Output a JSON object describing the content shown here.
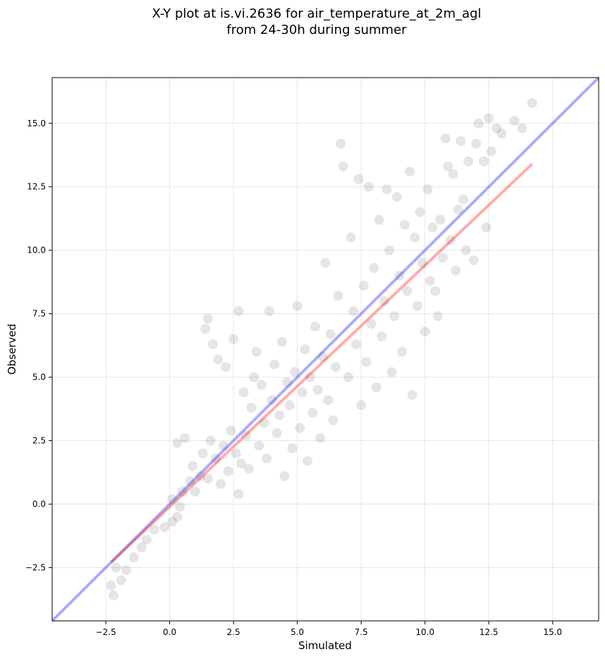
{
  "chart_data": {
    "type": "scatter",
    "title": [
      "X-Y plot at is.vi.2636 for air_temperature_at_2m_agl",
      "from 24-30h during summer"
    ],
    "xlabel": "Simulated",
    "ylabel": "Observed",
    "xlim": [
      -4.6,
      16.8
    ],
    "ylim": [
      -4.6,
      16.8
    ],
    "xticks": [
      -2.5,
      0.0,
      2.5,
      5.0,
      7.5,
      10.0,
      12.5,
      15.0
    ],
    "yticks": [
      -2.5,
      0.0,
      2.5,
      5.0,
      7.5,
      10.0,
      12.5,
      15.0
    ],
    "xtick_labels": [
      "−2.5",
      "0.0",
      "2.5",
      "5.0",
      "7.5",
      "10.0",
      "12.5",
      "15.0"
    ],
    "ytick_labels": [
      "−2.5",
      "0.0",
      "2.5",
      "5.0",
      "7.5",
      "10.0",
      "12.5",
      "15.0"
    ],
    "grid": true,
    "colors": {
      "points": "#000000",
      "identity_line": "#0000ff",
      "fit_line": "#ff0000",
      "grid": "#e6e6e6"
    },
    "series": [
      {
        "kind": "points",
        "points": [
          [
            -2.2,
            -3.6
          ],
          [
            -2.3,
            -3.2
          ],
          [
            -1.9,
            -3.0
          ],
          [
            -1.7,
            -2.6
          ],
          [
            -2.1,
            -2.5
          ],
          [
            -1.4,
            -2.1
          ],
          [
            -1.1,
            -1.7
          ],
          [
            -0.9,
            -1.4
          ],
          [
            -0.6,
            -1.0
          ],
          [
            -0.2,
            -0.9
          ],
          [
            0.1,
            -0.7
          ],
          [
            0.3,
            -0.5
          ],
          [
            0.4,
            -0.1
          ],
          [
            0.1,
            0.2
          ],
          [
            0.5,
            0.5
          ],
          [
            0.8,
            0.9
          ],
          [
            1.0,
            0.5
          ],
          [
            0.3,
            2.4
          ],
          [
            0.6,
            2.6
          ],
          [
            0.9,
            1.5
          ],
          [
            1.2,
            1.1
          ],
          [
            1.3,
            2.0
          ],
          [
            1.5,
            1.0
          ],
          [
            1.6,
            2.5
          ],
          [
            1.8,
            1.8
          ],
          [
            2.0,
            0.8
          ],
          [
            2.1,
            2.3
          ],
          [
            2.3,
            1.3
          ],
          [
            2.4,
            2.9
          ],
          [
            2.6,
            2.0
          ],
          [
            2.7,
            0.4
          ],
          [
            2.8,
            1.6
          ],
          [
            1.5,
            7.3
          ],
          [
            1.4,
            6.9
          ],
          [
            1.7,
            6.3
          ],
          [
            1.9,
            5.7
          ],
          [
            2.2,
            5.4
          ],
          [
            2.5,
            6.5
          ],
          [
            2.7,
            7.6
          ],
          [
            2.9,
            4.4
          ],
          [
            3.0,
            2.7
          ],
          [
            3.1,
            1.4
          ],
          [
            3.2,
            3.8
          ],
          [
            3.3,
            5.0
          ],
          [
            3.4,
            6.0
          ],
          [
            3.5,
            2.3
          ],
          [
            3.6,
            4.7
          ],
          [
            3.7,
            3.2
          ],
          [
            3.8,
            1.8
          ],
          [
            3.9,
            7.6
          ],
          [
            4.0,
            4.1
          ],
          [
            4.1,
            5.5
          ],
          [
            4.2,
            2.8
          ],
          [
            4.3,
            3.5
          ],
          [
            4.4,
            6.4
          ],
          [
            4.5,
            1.1
          ],
          [
            4.6,
            4.8
          ],
          [
            4.7,
            3.9
          ],
          [
            4.8,
            2.2
          ],
          [
            4.9,
            5.2
          ],
          [
            5.0,
            7.8
          ],
          [
            5.1,
            3.0
          ],
          [
            5.2,
            4.4
          ],
          [
            5.3,
            6.1
          ],
          [
            5.4,
            1.7
          ],
          [
            5.5,
            5.0
          ],
          [
            5.6,
            3.6
          ],
          [
            5.7,
            7.0
          ],
          [
            5.8,
            4.5
          ],
          [
            5.9,
            2.6
          ],
          [
            6.0,
            5.8
          ],
          [
            6.1,
            9.5
          ],
          [
            6.2,
            4.1
          ],
          [
            6.3,
            6.7
          ],
          [
            6.4,
            3.3
          ],
          [
            6.5,
            5.4
          ],
          [
            6.6,
            8.2
          ],
          [
            6.7,
            14.2
          ],
          [
            6.8,
            13.3
          ],
          [
            7.0,
            5.0
          ],
          [
            7.1,
            10.5
          ],
          [
            7.2,
            7.6
          ],
          [
            7.3,
            6.3
          ],
          [
            7.4,
            12.8
          ],
          [
            7.5,
            3.9
          ],
          [
            7.6,
            8.6
          ],
          [
            7.7,
            5.6
          ],
          [
            7.8,
            12.5
          ],
          [
            7.9,
            7.1
          ],
          [
            8.0,
            9.3
          ],
          [
            8.1,
            4.6
          ],
          [
            8.2,
            11.2
          ],
          [
            8.3,
            6.6
          ],
          [
            8.4,
            8.0
          ],
          [
            8.5,
            12.4
          ],
          [
            8.6,
            10.0
          ],
          [
            8.7,
            5.2
          ],
          [
            8.8,
            7.4
          ],
          [
            8.9,
            12.1
          ],
          [
            9.0,
            9.0
          ],
          [
            9.1,
            6.0
          ],
          [
            9.2,
            11.0
          ],
          [
            9.3,
            8.4
          ],
          [
            9.4,
            13.1
          ],
          [
            9.5,
            4.3
          ],
          [
            9.6,
            10.5
          ],
          [
            9.7,
            7.8
          ],
          [
            9.8,
            11.5
          ],
          [
            9.9,
            9.5
          ],
          [
            10.0,
            6.8
          ],
          [
            10.1,
            12.4
          ],
          [
            10.2,
            8.8
          ],
          [
            10.3,
            10.9
          ],
          [
            10.4,
            8.4
          ],
          [
            10.5,
            7.4
          ],
          [
            10.6,
            11.2
          ],
          [
            10.7,
            9.7
          ],
          [
            10.8,
            14.4
          ],
          [
            10.9,
            13.3
          ],
          [
            11.0,
            10.4
          ],
          [
            11.1,
            13.0
          ],
          [
            11.2,
            9.2
          ],
          [
            11.3,
            11.6
          ],
          [
            11.4,
            14.3
          ],
          [
            11.5,
            12.0
          ],
          [
            11.6,
            10.0
          ],
          [
            11.7,
            13.5
          ],
          [
            11.9,
            9.6
          ],
          [
            12.0,
            14.2
          ],
          [
            12.1,
            15.0
          ],
          [
            12.3,
            13.5
          ],
          [
            12.4,
            10.9
          ],
          [
            12.5,
            15.2
          ],
          [
            12.6,
            13.9
          ],
          [
            12.8,
            14.8
          ],
          [
            13.0,
            14.6
          ],
          [
            13.5,
            15.1
          ],
          [
            13.8,
            14.8
          ],
          [
            14.2,
            15.8
          ]
        ]
      },
      {
        "kind": "line",
        "label": "",
        "from": [
          -4.6,
          -4.6
        ],
        "to": [
          16.8,
          16.8
        ],
        "color": "#0000ff"
      },
      {
        "kind": "line",
        "label": "",
        "from": [
          -2.3,
          -2.3
        ],
        "to": [
          14.2,
          13.4
        ],
        "color": "#ff0000"
      }
    ]
  }
}
